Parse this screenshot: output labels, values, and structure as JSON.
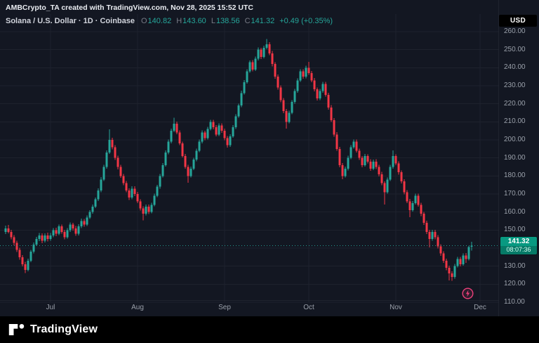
{
  "attribution": "AMBCrypto_TA created with TradingView.com, Nov 28, 2025 15:52 UTC",
  "header": {
    "symbol_title": "Solana / U.S. Dollar · 1D · Coinbase",
    "ohlc": {
      "o_label": "O",
      "o": "140.82",
      "h_label": "H",
      "h": "143.60",
      "l_label": "L",
      "l": "138.56",
      "c_label": "C",
      "c": "141.32",
      "change": "+0.49 (+0.35%)"
    }
  },
  "currency_button": "USD",
  "price_badge": {
    "price": "141.32",
    "countdown": "08:07:36"
  },
  "logo": {
    "text": "TradingView"
  },
  "icons": {
    "flash": "lightning-bolt"
  },
  "colors": {
    "background": "#131722",
    "up": "#26a69a",
    "down": "#f23645",
    "grid": "#1e222d",
    "axis_text": "#9aa0aa",
    "badge_bg": "#089981",
    "badge_countdown_bg": "#067a67",
    "badge_text": "#ffffff",
    "badge_countdown_text": "#d9fff5",
    "flash_pink": "#ec407a",
    "bottom_bar": "#000000"
  },
  "chart_data": {
    "type": "candlestick",
    "title": "Solana / U.S. Dollar",
    "interval": "1D",
    "exchange": "Coinbase",
    "ylim": [
      106,
      262
    ],
    "grid": true,
    "last_price": 141.32,
    "last_ohlc": {
      "open": 140.82,
      "high": 143.6,
      "low": 138.56,
      "close": 141.32
    },
    "price_ticks": [
      110,
      120,
      130,
      140,
      150,
      160,
      170,
      180,
      190,
      200,
      210,
      220,
      230,
      240,
      250,
      260
    ],
    "month_ticks": [
      {
        "label": "Jul",
        "index": 16
      },
      {
        "label": "Aug",
        "index": 47
      },
      {
        "label": "Sep",
        "index": 78
      },
      {
        "label": "Oct",
        "index": 108
      },
      {
        "label": "Nov",
        "index": 139
      },
      {
        "label": "Dec",
        "index": 169
      }
    ],
    "candles": [
      [
        149,
        152.5,
        147.8,
        151
      ],
      [
        151,
        152.8,
        148.2,
        149
      ],
      [
        149,
        150.1,
        144.9,
        146
      ],
      [
        146,
        147.2,
        141.5,
        143
      ],
      [
        143,
        144,
        137.8,
        139
      ],
      [
        139,
        140.2,
        133.6,
        135
      ],
      [
        135,
        136.1,
        129.8,
        131
      ],
      [
        131,
        132.4,
        126.2,
        128
      ],
      [
        128,
        134.2,
        127.1,
        133
      ],
      [
        133,
        139,
        132.2,
        138
      ],
      [
        138,
        143.1,
        137,
        142
      ],
      [
        142,
        146.2,
        141.1,
        145
      ],
      [
        145,
        148.3,
        143.9,
        147
      ],
      [
        147,
        148.1,
        142.8,
        144
      ],
      [
        144,
        148.2,
        143.1,
        147
      ],
      [
        147,
        148.5,
        143.7,
        145
      ],
      [
        145,
        148.4,
        144,
        147
      ],
      [
        147,
        151.2,
        146.1,
        150
      ],
      [
        150,
        151.3,
        146.7,
        148
      ],
      [
        148,
        153.1,
        147.2,
        152
      ],
      [
        152,
        153,
        147.9,
        149
      ],
      [
        149,
        150.2,
        144.8,
        146
      ],
      [
        146,
        151.1,
        145.2,
        150
      ],
      [
        150,
        154.2,
        149,
        153
      ],
      [
        153,
        154.1,
        149.8,
        151
      ],
      [
        151,
        152.3,
        146.9,
        148
      ],
      [
        148,
        153.2,
        147.1,
        152
      ],
      [
        152,
        156.3,
        151.2,
        155
      ],
      [
        155,
        156.1,
        151.9,
        153
      ],
      [
        153,
        158.2,
        152.3,
        157
      ],
      [
        157,
        161.1,
        156.2,
        160
      ],
      [
        160,
        164.2,
        159,
        163
      ],
      [
        163,
        168.1,
        162.2,
        167
      ],
      [
        167,
        173.2,
        166.1,
        172
      ],
      [
        172,
        179.3,
        171,
        178
      ],
      [
        178,
        186.2,
        177.2,
        185
      ],
      [
        185,
        194.1,
        184,
        193
      ],
      [
        193,
        205.8,
        192.2,
        200
      ],
      [
        200,
        201.2,
        194.8,
        196
      ],
      [
        196,
        197.1,
        188.9,
        190
      ],
      [
        190,
        191.3,
        183.7,
        185
      ],
      [
        185,
        186.2,
        178.9,
        180
      ],
      [
        180,
        181.1,
        174.8,
        176
      ],
      [
        176,
        177.3,
        170.9,
        172
      ],
      [
        172,
        173.1,
        166.7,
        168
      ],
      [
        168,
        174.2,
        167.1,
        173
      ],
      [
        173,
        174.3,
        168.8,
        170
      ],
      [
        170,
        171.2,
        164.9,
        166
      ],
      [
        166,
        167.1,
        160.8,
        162
      ],
      [
        162,
        163.2,
        155.3,
        159
      ],
      [
        159,
        164.1,
        158.1,
        163
      ],
      [
        163,
        164.2,
        158.9,
        160
      ],
      [
        160,
        165.1,
        159.2,
        164
      ],
      [
        164,
        170.2,
        163.1,
        169
      ],
      [
        169,
        175.1,
        168.2,
        174
      ],
      [
        174,
        181.2,
        173,
        180
      ],
      [
        180,
        187.1,
        179.1,
        186
      ],
      [
        186,
        194.2,
        185.2,
        193
      ],
      [
        193,
        200.1,
        192,
        199
      ],
      [
        199,
        206.2,
        198.1,
        205
      ],
      [
        205,
        212.3,
        204.2,
        209
      ],
      [
        209,
        210.1,
        203.1,
        204
      ],
      [
        204,
        205.2,
        197,
        198
      ],
      [
        198,
        199.1,
        190.2,
        191
      ],
      [
        191,
        192.2,
        184.1,
        185
      ],
      [
        185,
        186.1,
        176.3,
        180
      ],
      [
        180,
        185.2,
        179.1,
        184
      ],
      [
        184,
        190.1,
        183.2,
        189
      ],
      [
        189,
        195.2,
        188.1,
        194
      ],
      [
        194,
        200.1,
        193.2,
        199
      ],
      [
        199,
        205.2,
        198,
        204
      ],
      [
        204,
        205.1,
        199.9,
        201
      ],
      [
        201,
        207.2,
        200.1,
        206
      ],
      [
        206,
        211.1,
        205.2,
        210
      ],
      [
        210,
        211.2,
        205.8,
        207
      ],
      [
        207,
        208.1,
        201.9,
        203
      ],
      [
        203,
        209.2,
        202.1,
        208
      ],
      [
        208,
        209.1,
        203.8,
        205
      ],
      [
        205,
        206.2,
        199.9,
        201
      ],
      [
        201,
        202.1,
        195.8,
        197
      ],
      [
        197,
        203.2,
        196.1,
        202
      ],
      [
        202,
        208.1,
        201.2,
        207
      ],
      [
        207,
        214.2,
        206.1,
        213
      ],
      [
        213,
        220.1,
        212.2,
        219
      ],
      [
        219,
        227.2,
        218.1,
        226
      ],
      [
        226,
        233.1,
        225.2,
        232
      ],
      [
        232,
        239.2,
        231.1,
        238
      ],
      [
        238,
        244.1,
        237.2,
        243
      ],
      [
        243,
        244.2,
        237.9,
        239
      ],
      [
        239,
        246.1,
        238.2,
        245
      ],
      [
        245,
        251.2,
        244.1,
        250
      ],
      [
        250,
        251.1,
        244.9,
        246
      ],
      [
        246,
        252.2,
        245.1,
        251
      ],
      [
        251,
        256,
        250.2,
        253
      ],
      [
        253,
        254.1,
        246.9,
        248
      ],
      [
        248,
        249.2,
        240.8,
        242
      ],
      [
        242,
        243.1,
        233.9,
        235
      ],
      [
        235,
        236.2,
        227.8,
        229
      ],
      [
        229,
        230.1,
        220.9,
        222
      ],
      [
        222,
        223.2,
        214.8,
        216
      ],
      [
        216,
        217.1,
        206.2,
        210
      ],
      [
        210,
        216.2,
        209.1,
        215
      ],
      [
        215,
        222.1,
        214.2,
        221
      ],
      [
        221,
        228.2,
        220.1,
        227
      ],
      [
        227,
        234.1,
        226.2,
        233
      ],
      [
        233,
        239.2,
        232.1,
        238
      ],
      [
        238,
        239.1,
        233.8,
        235
      ],
      [
        235,
        241.2,
        234.1,
        240
      ],
      [
        240,
        243.2,
        236.1,
        237
      ],
      [
        237,
        238.1,
        231.9,
        233
      ],
      [
        233,
        234.2,
        226.8,
        228
      ],
      [
        228,
        229.1,
        221.9,
        223
      ],
      [
        223,
        228.2,
        222.1,
        227
      ],
      [
        227,
        232.1,
        226.2,
        231
      ],
      [
        231,
        232.2,
        223.9,
        225
      ],
      [
        225,
        226.1,
        216.8,
        218
      ],
      [
        218,
        219.2,
        209.9,
        211
      ],
      [
        211,
        212.1,
        201.8,
        203
      ],
      [
        203,
        204.2,
        193.9,
        195
      ],
      [
        195,
        196.1,
        184.8,
        186
      ],
      [
        186,
        187.2,
        178.1,
        180
      ],
      [
        180,
        185.1,
        179.2,
        184
      ],
      [
        184,
        191.2,
        183.1,
        190
      ],
      [
        190,
        197.1,
        189.2,
        196
      ],
      [
        196,
        200.2,
        195.1,
        199
      ],
      [
        199,
        200.1,
        192.9,
        194
      ],
      [
        194,
        195.2,
        188.8,
        190
      ],
      [
        190,
        191.1,
        184.9,
        186
      ],
      [
        186,
        192.2,
        185.1,
        191
      ],
      [
        191,
        192.1,
        186.9,
        188
      ],
      [
        188,
        189.2,
        182.8,
        184
      ],
      [
        184,
        189.1,
        183.2,
        188
      ],
      [
        188,
        189.2,
        183.9,
        185
      ],
      [
        185,
        186.1,
        179.8,
        181
      ],
      [
        181,
        182.2,
        174.9,
        176
      ],
      [
        176,
        177.1,
        164.2,
        171
      ],
      [
        171,
        179.2,
        170.1,
        178
      ],
      [
        178,
        186.1,
        177.2,
        185
      ],
      [
        185,
        194.2,
        184.1,
        191
      ],
      [
        191,
        192.1,
        185.9,
        187
      ],
      [
        187,
        188.2,
        180.8,
        182
      ],
      [
        182,
        183.1,
        175.9,
        177
      ],
      [
        177,
        178.2,
        169.8,
        171
      ],
      [
        171,
        172.1,
        164.9,
        166
      ],
      [
        166,
        167.2,
        157.1,
        161
      ],
      [
        161,
        166.1,
        160.2,
        165
      ],
      [
        165,
        170.2,
        164.1,
        169
      ],
      [
        169,
        170.1,
        162.9,
        164
      ],
      [
        164,
        165.2,
        157.8,
        159
      ],
      [
        159,
        160.1,
        152.9,
        154
      ],
      [
        154,
        155.2,
        147.8,
        149
      ],
      [
        149,
        150.1,
        140.3,
        145
      ],
      [
        145,
        150.2,
        144.1,
        149
      ],
      [
        149,
        150.1,
        144.9,
        146
      ],
      [
        146,
        147.2,
        139.9,
        141
      ],
      [
        141,
        142.1,
        135.8,
        137
      ],
      [
        137,
        138.2,
        131.9,
        133
      ],
      [
        133,
        134.1,
        127.8,
        129
      ],
      [
        129,
        130.2,
        122.1,
        126
      ],
      [
        126,
        127.1,
        121.9,
        124
      ],
      [
        124,
        131.2,
        123.1,
        130
      ],
      [
        130,
        135.1,
        129.2,
        134
      ],
      [
        134,
        135.2,
        129.9,
        131
      ],
      [
        131,
        137.1,
        130.2,
        136
      ],
      [
        136,
        137.2,
        131.9,
        134
      ],
      [
        134,
        141.1,
        133.2,
        140.5
      ],
      [
        140.82,
        143.6,
        138.56,
        141.32
      ]
    ]
  }
}
